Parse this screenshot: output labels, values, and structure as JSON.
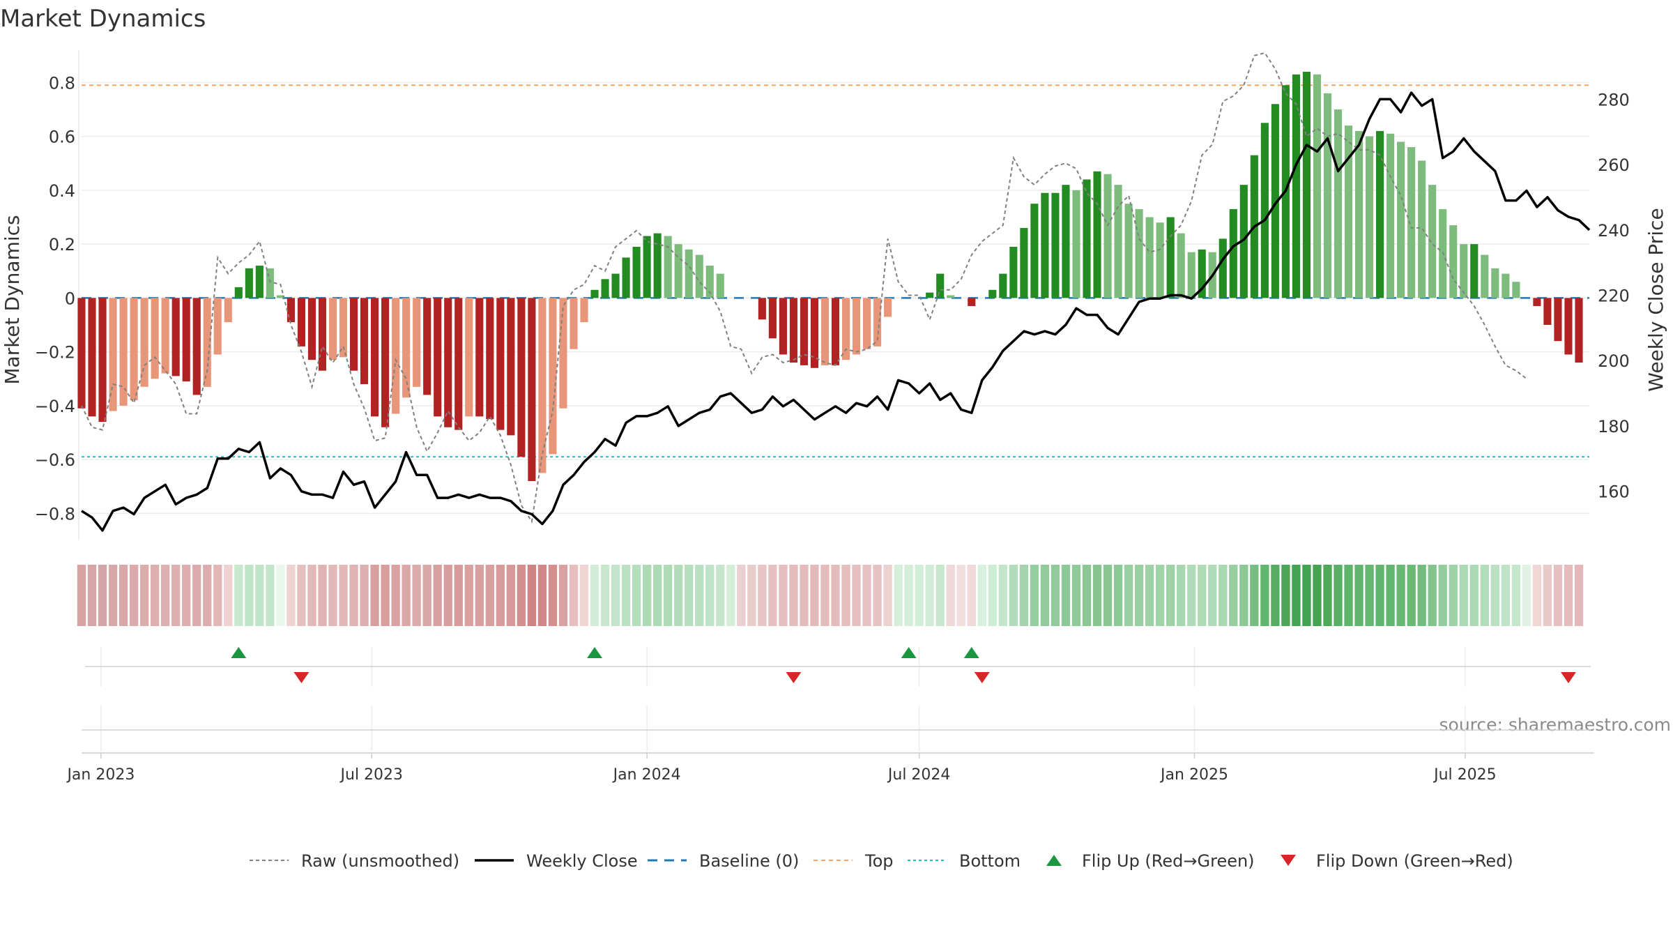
{
  "chart_data": {
    "type": "bar",
    "title": "Market Dynamics",
    "ylabel_left": "Market Dynamics",
    "ylabel_right": "Weekly Close Price",
    "source": "source: sharemaestro.com",
    "ylim_left": [
      -0.9,
      0.92
    ],
    "yticks_left": [
      -0.8,
      -0.6,
      -0.4,
      -0.2,
      0,
      0.2,
      0.4,
      0.6,
      0.8
    ],
    "ytick_labels_left": [
      "−0.8",
      "−0.6",
      "−0.4",
      "−0.2",
      "0",
      "0.2",
      "0.4",
      "0.6",
      "0.8"
    ],
    "ylim_right": [
      145,
      295
    ],
    "yticks_right": [
      160,
      180,
      200,
      220,
      240,
      260,
      280
    ],
    "ytick_labels_right": [
      "160",
      "180",
      "200",
      "220",
      "240",
      "260",
      "280"
    ],
    "xlim": [
      "2022-12-19",
      "2025-09-22"
    ],
    "xticks": [
      "2023-01-01",
      "2023-07-01",
      "2024-01-01",
      "2024-07-01",
      "2025-01-01",
      "2025-07-01"
    ],
    "xtick_labels": [
      "Jan 2023",
      "Jul 2023",
      "Jan 2024",
      "Jul 2024",
      "Jan 2025",
      "Jul 2025"
    ],
    "grid": true,
    "top_level": 0.79,
    "bottom_level": -0.59,
    "baseline": 0,
    "week_start": "2022-12-19",
    "weeks": 145,
    "momentum": [
      -0.41,
      -0.44,
      -0.46,
      -0.42,
      -0.4,
      -0.38,
      -0.33,
      -0.3,
      -0.28,
      -0.29,
      -0.31,
      -0.36,
      -0.33,
      -0.21,
      -0.09,
      0.04,
      0.11,
      0.12,
      0.11,
      0.01,
      -0.09,
      -0.18,
      -0.23,
      -0.27,
      -0.23,
      -0.22,
      -0.27,
      -0.32,
      -0.44,
      -0.48,
      -0.43,
      -0.37,
      -0.33,
      -0.36,
      -0.44,
      -0.48,
      -0.49,
      -0.44,
      -0.44,
      -0.45,
      -0.49,
      -0.51,
      -0.59,
      -0.68,
      -0.65,
      -0.58,
      -0.41,
      -0.19,
      -0.09,
      0.03,
      0.07,
      0.09,
      0.15,
      0.19,
      0.23,
      0.24,
      0.23,
      0.2,
      0.18,
      0.16,
      0.12,
      0.09,
      0,
      0,
      0,
      -0.08,
      -0.15,
      -0.21,
      -0.24,
      -0.25,
      -0.26,
      -0.25,
      -0.25,
      -0.23,
      -0.21,
      -0.19,
      -0.18,
      -0.07,
      0,
      0,
      0,
      0.02,
      0.09,
      0.01,
      0,
      -0.03,
      0,
      0.03,
      0.09,
      0.19,
      0.26,
      0.35,
      0.39,
      0.39,
      0.42,
      0.4,
      0.44,
      0.47,
      0.46,
      0.42,
      0.35,
      0.33,
      0.3,
      0.28,
      0.3,
      0.24,
      0.17,
      0.18,
      0.17,
      0.22,
      0.33,
      0.42,
      0.53,
      0.65,
      0.72,
      0.79,
      0.83,
      0.84,
      0.83,
      0.76,
      0.7,
      0.64,
      0.62,
      0.6,
      0.62,
      0.61,
      0.58,
      0.56,
      0.51,
      0.42,
      0.33,
      0.27,
      0.2,
      0.2,
      0.16,
      0.11,
      0.09,
      0.06,
      0,
      -0.03,
      -0.1,
      -0.16,
      -0.21,
      -0.24
    ],
    "raw": [
      -0.4,
      -0.48,
      -0.49,
      -0.32,
      -0.33,
      -0.39,
      -0.25,
      -0.22,
      -0.27,
      -0.32,
      -0.43,
      -0.43,
      -0.27,
      0.15,
      0.09,
      0.13,
      0.16,
      0.21,
      0.06,
      0.05,
      -0.1,
      -0.2,
      -0.33,
      -0.18,
      -0.24,
      -0.18,
      -0.32,
      -0.41,
      -0.53,
      -0.52,
      -0.23,
      -0.3,
      -0.48,
      -0.57,
      -0.5,
      -0.42,
      -0.48,
      -0.53,
      -0.5,
      -0.44,
      -0.51,
      -0.62,
      -0.77,
      -0.83,
      -0.58,
      -0.42,
      -0.03,
      0.03,
      0.05,
      0.12,
      0.1,
      0.19,
      0.22,
      0.25,
      0.21,
      0.2,
      0.19,
      0.15,
      0.12,
      0.06,
      0.02,
      -0.05,
      -0.18,
      -0.19,
      -0.28,
      -0.22,
      -0.21,
      -0.24,
      -0.23,
      -0.21,
      -0.22,
      -0.24,
      -0.25,
      -0.19,
      -0.2,
      -0.19,
      -0.16,
      0.22,
      0.06,
      0.01,
      0.01,
      -0.08,
      0.03,
      0.03,
      0.07,
      0.16,
      0.21,
      0.24,
      0.27,
      0.52,
      0.45,
      0.42,
      0.46,
      0.49,
      0.5,
      0.48,
      0.39,
      0.35,
      0.27,
      0.34,
      0.38,
      0.22,
      0.17,
      0.18,
      0.23,
      0.27,
      0.36,
      0.53,
      0.57,
      0.73,
      0.75,
      0.79,
      0.9,
      0.91,
      0.85,
      0.76,
      0.72,
      0.6,
      0.63,
      0.6,
      0.61,
      0.58,
      0.55,
      0.55,
      0.53,
      0.45,
      0.38,
      0.26,
      0.26,
      0.2,
      0.17,
      0.07,
      0.02,
      -0.03,
      -0.1,
      -0.18,
      -0.25,
      -0.27,
      -0.3
    ],
    "weekly_close": [
      154,
      152,
      148,
      154,
      155,
      153,
      158,
      160,
      162,
      156,
      158,
      159,
      161,
      170,
      170,
      173,
      172,
      175,
      164,
      167,
      165,
      160,
      159,
      159,
      158,
      166,
      162,
      163,
      155,
      159,
      163,
      172,
      165,
      165,
      158,
      158,
      159,
      158,
      159,
      158,
      158,
      157,
      154,
      153,
      150,
      154,
      162,
      165,
      169,
      172,
      176,
      174,
      181,
      183,
      183,
      184,
      186,
      180,
      182,
      184,
      185,
      189,
      190,
      187,
      184,
      185,
      189,
      186,
      188,
      185,
      182,
      184,
      186,
      184,
      187,
      186,
      189,
      185,
      194,
      193,
      190,
      193,
      188,
      190,
      185,
      184,
      194,
      198,
      203,
      206,
      209,
      208,
      209,
      208,
      211,
      216,
      214,
      214,
      210,
      208,
      213,
      218,
      219,
      219,
      220,
      220,
      219,
      222,
      226,
      231,
      235,
      237,
      241,
      243,
      248,
      252,
      260,
      266,
      264,
      268,
      258,
      262,
      266,
      274,
      280,
      280,
      276,
      282,
      278,
      280,
      262,
      264,
      268,
      264,
      261,
      258,
      249,
      249,
      252,
      247,
      250,
      246,
      244,
      243,
      240
    ],
    "regime_colors": [
      "#d9a3a3",
      "#d6a6a6",
      "#d3a5a5",
      "#d8a7a7",
      "#d9a9a9",
      "#dbabab",
      "#dcadad",
      "#ddafaf",
      "#deb1b1",
      "#dfb0b0",
      "#deaeae",
      "#dcabab",
      "#ddacac",
      "#e3b7b7",
      "#efd1d1",
      "#c7e8cd",
      "#c0e4c7",
      "#c0e4c7",
      "#c3e6ca",
      "#eaf6ec",
      "#efd3d3",
      "#e6bfbf",
      "#e2b8b8",
      "#e0b4b4",
      "#e2b8b8",
      "#e2b9b9",
      "#e0b4b4",
      "#dfb0b0",
      "#d9a0a0",
      "#d89d9d",
      "#d9a1a1",
      "#dba7a7",
      "#dcabab",
      "#dba8a8",
      "#d9a0a0",
      "#d89d9d",
      "#d79b9b",
      "#d9a0a0",
      "#d9a0a0",
      "#d99f9f",
      "#d79b9b",
      "#d69898",
      "#d38e8e",
      "#d08383",
      "#d18787",
      "#d48f8f",
      "#d9a1a1",
      "#e6bebe",
      "#f0d3d3",
      "#d2ecd7",
      "#c8e8ce",
      "#c3e5c9",
      "#bbe1c2",
      "#b4dfbc",
      "#aedab6",
      "#addab5",
      "#aedab6",
      "#b2dcba",
      "#b6dfbe",
      "#b9e0c0",
      "#bfe3c6",
      "#c5e6cb",
      "#d4eed9",
      "#ead0d0",
      "#e9cdcd",
      "#e7c5c5",
      "#e5c1c1",
      "#e4bebe",
      "#e3bcbc",
      "#e3bbbb",
      "#e3baba",
      "#e3bbbb",
      "#e3bbbb",
      "#e4bdbd",
      "#e5c0c0",
      "#e6c2c2",
      "#e6c3c3",
      "#ecd1d1",
      "#d6efdb",
      "#d4eed9",
      "#d3eed8",
      "#d0ecd6",
      "#c7e8ce",
      "#f0d8d8",
      "#f2dddd",
      "#f1d9d9",
      "#d8f0dd",
      "#cdeed4",
      "#c3e6ca",
      "#b2dcbb",
      "#a4d4ae",
      "#95ce9f",
      "#91cb9b",
      "#91cb9b",
      "#8dc997",
      "#90ca9a",
      "#8ac794",
      "#86c590",
      "#88c692",
      "#8dc997",
      "#97cfa0",
      "#99d0a2",
      "#9dd2a6",
      "#a1d3aa",
      "#9dd2a6",
      "#a7d7b0",
      "#b0dbb8",
      "#aedab6",
      "#b0dbb8",
      "#a9d8b1",
      "#97cfa0",
      "#8bc895",
      "#77be82",
      "#62b56e",
      "#55ad62",
      "#49a756",
      "#43a451",
      "#42a350",
      "#43a451",
      "#4ea95b",
      "#58af65",
      "#5fb36b",
      "#62b56e",
      "#64b670",
      "#62b56e",
      "#63b66f",
      "#67b872",
      "#6ab974",
      "#72bc7d",
      "#82c48c",
      "#93cd9d",
      "#9ed3a7",
      "#acd9b4",
      "#acd9b4",
      "#b3dcbb",
      "#bbe1c2",
      "#bfe3c6",
      "#c5e6cb",
      "#dff2e3",
      "#f1d6d6",
      "#e9caca",
      "#e6c1c1",
      "#e4bcbc",
      "#e2b8b8"
    ],
    "flip_up": [
      "2023-04-03",
      "2023-11-27",
      "2024-06-24",
      "2024-08-05"
    ],
    "flip_down": [
      "2023-05-15",
      "2024-04-08",
      "2024-08-12",
      "2025-09-08"
    ],
    "colors": {
      "pos_strong": "#228b22",
      "pos_weak": "#7dbc7d",
      "neg_strong": "#b22222",
      "neg_weak": "#e8967a",
      "raw": "#808080",
      "close": "#000000",
      "baseline": "#1f77b4",
      "top": "#f4a460",
      "bottom": "#17becf",
      "flip_up": "#1a9641",
      "flip_down": "#d62728"
    },
    "legend_position": "bottom-center",
    "legend": [
      {
        "key": "raw",
        "label": "Raw (unsmoothed)"
      },
      {
        "key": "close",
        "label": "Weekly Close"
      },
      {
        "key": "baseline",
        "label": "Baseline (0)"
      },
      {
        "key": "top",
        "label": "Top"
      },
      {
        "key": "bottom",
        "label": "Bottom"
      },
      {
        "key": "flip_up",
        "label": "Flip Up (Red→Green)"
      },
      {
        "key": "flip_down",
        "label": "Flip Down (Green→Red)"
      }
    ]
  }
}
